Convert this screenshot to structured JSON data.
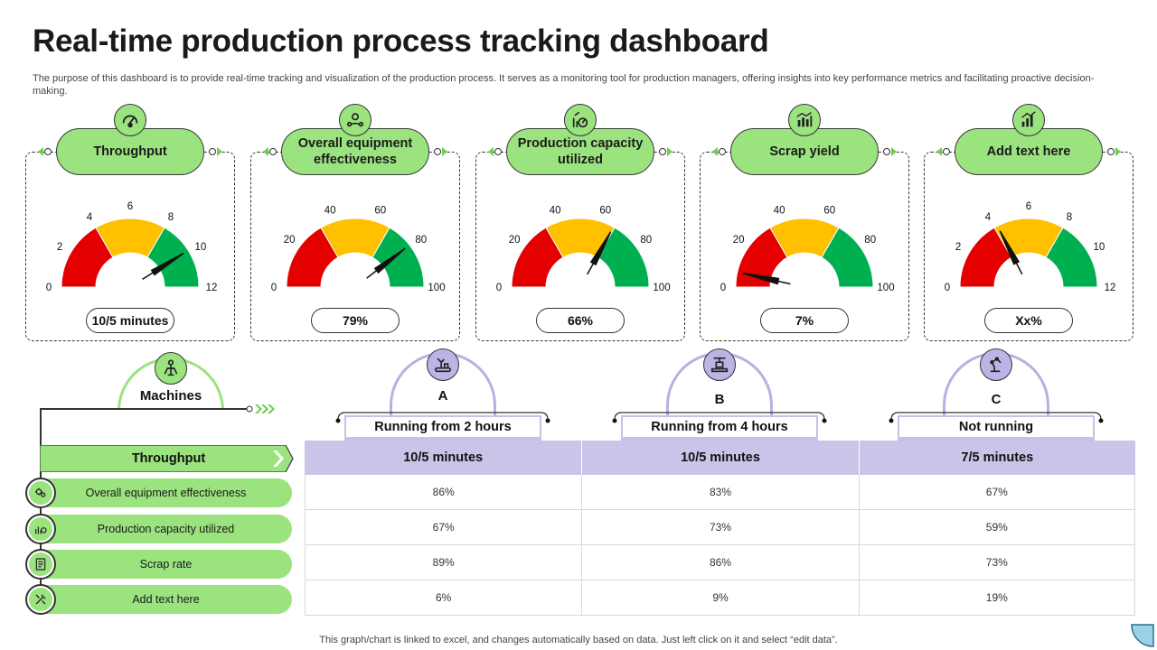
{
  "title": "Real-time production process tracking dashboard",
  "description": "The purpose of this dashboard is to provide real-time tracking and visualization of the production process. It serves as a monitoring tool for production managers, offering insights into key performance metrics and facilitating proactive decision-making.",
  "colors": {
    "green": "#9be37f",
    "gauge_red": "#e50000",
    "gauge_yellow": "#ffc000",
    "gauge_green": "#00b050",
    "lavender": "#c9c4e8",
    "lavender_border": "#b8b0e3"
  },
  "kpis": [
    {
      "label": "Throughput",
      "icon": "speedometer-icon",
      "ticks": [
        "0",
        "2",
        "4",
        "6",
        "8",
        "10",
        "12"
      ],
      "needle_fraction": 0.82,
      "value": "10/5 minutes"
    },
    {
      "label": "Overall equipment effectiveness",
      "icon": "worker-gear-icon",
      "ticks": [
        "0",
        "20",
        "40",
        "60",
        "80",
        "100"
      ],
      "needle_fraction": 0.79,
      "value": "79%"
    },
    {
      "label": "Production capacity utilized",
      "icon": "capacity-chart-icon",
      "ticks": [
        "0",
        "20",
        "40",
        "60",
        "80",
        "100"
      ],
      "needle_fraction": 0.66,
      "value": "66%"
    },
    {
      "label": "Scrap yield",
      "icon": "bar-chart-icon",
      "ticks": [
        "0",
        "20",
        "40",
        "60",
        "80",
        "100"
      ],
      "needle_fraction": 0.07,
      "value": "7%"
    },
    {
      "label": "Add text here",
      "icon": "growth-chart-icon",
      "ticks": [
        "0",
        "2",
        "4",
        "6",
        "8",
        "10",
        "12"
      ],
      "needle_fraction": 0.35,
      "value": "Xx%"
    }
  ],
  "machines": {
    "label": "Machines",
    "icon": "robot-arm-icon",
    "throughput_label": "Throughput",
    "metrics": [
      {
        "label": "Overall equipment effectiveness",
        "icon": "gears-icon"
      },
      {
        "label": "Production capacity utilized",
        "icon": "capacity-icon"
      },
      {
        "label": "Scrap rate",
        "icon": "document-icon"
      },
      {
        "label": "Add text here",
        "icon": "tools-icon"
      }
    ],
    "columns": [
      {
        "letter": "A",
        "status": "Running from 2 hours",
        "icon": "conveyor-robot-icon",
        "throughput": "10/5 minutes",
        "values": [
          "86%",
          "67%",
          "89%",
          "6%"
        ]
      },
      {
        "letter": "B",
        "status": "Running from 4 hours",
        "icon": "factory-machine-icon",
        "throughput": "10/5 minutes",
        "values": [
          "83%",
          "73%",
          "86%",
          "9%"
        ]
      },
      {
        "letter": "C",
        "status": "Not running",
        "icon": "robotic-arm-icon",
        "throughput": "7/5 minutes",
        "values": [
          "67%",
          "59%",
          "73%",
          "19%"
        ]
      }
    ]
  },
  "footnote": "This graph/chart is linked to excel,  and changes automatically based on data. Just left click on it and select “edit data”."
}
